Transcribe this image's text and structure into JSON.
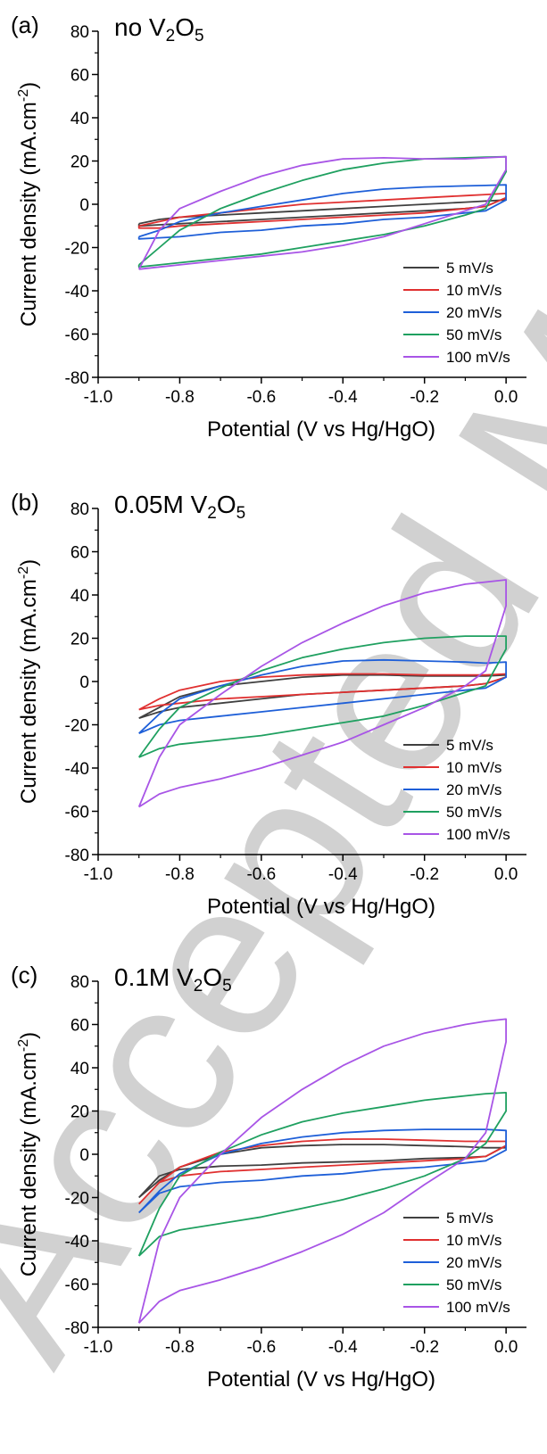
{
  "figure": {
    "watermark_text": "Accepted Manuscript"
  },
  "chart_data": [
    {
      "type": "line",
      "panel": "(a)",
      "title_parts": [
        "no V",
        "2",
        "O",
        "5"
      ],
      "xlabel": "Potential (V vs Hg/HgO)",
      "ylabel": "Current density (mA.cm",
      "ylabel_sup": "-2",
      "ylabel_end": ")",
      "xlim": [
        -1.0,
        0.05
      ],
      "ylim": [
        -80,
        80
      ],
      "xticks": [
        -1.0,
        -0.8,
        -0.6,
        -0.4,
        -0.2,
        0.0
      ],
      "xtick_labels": [
        "-1.0",
        "-0.8",
        "-0.6",
        "-0.4",
        "-0.2",
        "0.0"
      ],
      "yticks": [
        -80,
        -60,
        -40,
        -20,
        0,
        20,
        40,
        60,
        80
      ],
      "ytick_labels": [
        "-80",
        "-60",
        "-40",
        "-20",
        "0",
        "20",
        "40",
        "60",
        "80"
      ],
      "legend_position": "bottom-right",
      "series": [
        {
          "name": "5 mV/s",
          "color": "#404040",
          "x": [
            -0.9,
            -0.85,
            -0.8,
            -0.7,
            -0.6,
            -0.5,
            -0.4,
            -0.3,
            -0.2,
            -0.1,
            -0.05,
            0.0,
            0.0,
            -0.05,
            -0.1,
            -0.2,
            -0.3,
            -0.4,
            -0.5,
            -0.6,
            -0.7,
            -0.8,
            -0.85,
            -0.9,
            -0.9
          ],
          "y": [
            -9,
            -7,
            -6,
            -5,
            -4,
            -3,
            -2,
            -1,
            0,
            1,
            1.5,
            2,
            3,
            -1,
            -2,
            -3,
            -4,
            -5,
            -6,
            -7,
            -8,
            -9,
            -9.5,
            -10,
            -9
          ]
        },
        {
          "name": "10 mV/s",
          "color": "#e03030",
          "x": [
            -0.9,
            -0.85,
            -0.8,
            -0.7,
            -0.6,
            -0.5,
            -0.4,
            -0.3,
            -0.2,
            -0.1,
            -0.05,
            0.0,
            0.0,
            -0.05,
            -0.1,
            -0.2,
            -0.3,
            -0.4,
            -0.5,
            -0.6,
            -0.7,
            -0.8,
            -0.85,
            -0.9,
            -0.9
          ],
          "y": [
            -10,
            -8,
            -6,
            -4,
            -2,
            0,
            1,
            2,
            3,
            4,
            4.5,
            5,
            3,
            -1,
            -2,
            -4,
            -5,
            -6,
            -7,
            -8,
            -9,
            -10,
            -11,
            -11,
            -10
          ]
        },
        {
          "name": "20 mV/s",
          "color": "#1e5fd8",
          "x": [
            -0.9,
            -0.85,
            -0.8,
            -0.7,
            -0.6,
            -0.5,
            -0.4,
            -0.3,
            -0.2,
            -0.1,
            -0.05,
            0.0,
            0.0,
            -0.05,
            -0.1,
            -0.2,
            -0.3,
            -0.4,
            -0.5,
            -0.6,
            -0.7,
            -0.8,
            -0.85,
            -0.9,
            -0.9
          ],
          "y": [
            -15,
            -12,
            -8,
            -4,
            -1,
            2,
            5,
            7,
            8,
            8.5,
            8.7,
            9,
            2,
            -3,
            -4,
            -6,
            -7,
            -9,
            -10,
            -12,
            -13,
            -15,
            -15.5,
            -16,
            -15
          ]
        },
        {
          "name": "50 mV/s",
          "color": "#1fa060",
          "x": [
            -0.9,
            -0.85,
            -0.8,
            -0.7,
            -0.6,
            -0.5,
            -0.4,
            -0.3,
            -0.2,
            -0.1,
            -0.05,
            0.0,
            0.0,
            -0.05,
            -0.1,
            -0.2,
            -0.3,
            -0.4,
            -0.5,
            -0.6,
            -0.7,
            -0.8,
            -0.85,
            -0.9,
            -0.9
          ],
          "y": [
            -28,
            -20,
            -12,
            -2,
            5,
            11,
            16,
            19,
            21,
            21.5,
            21.8,
            22,
            15,
            -2,
            -5,
            -10,
            -14,
            -17,
            -20,
            -23,
            -25,
            -27,
            -28,
            -29,
            -28
          ]
        },
        {
          "name": "100 mV/s",
          "color": "#a855e6",
          "x": [
            -0.9,
            -0.85,
            -0.8,
            -0.7,
            -0.6,
            -0.5,
            -0.4,
            -0.3,
            -0.2,
            -0.1,
            -0.05,
            0.0,
            0.0,
            -0.05,
            -0.1,
            -0.2,
            -0.3,
            -0.4,
            -0.5,
            -0.6,
            -0.7,
            -0.8,
            -0.85,
            -0.9,
            -0.9
          ],
          "y": [
            -30,
            -12,
            -2,
            6,
            13,
            18,
            21,
            21.5,
            21,
            21,
            21.5,
            22,
            16,
            0,
            -3,
            -9,
            -15,
            -19,
            -22,
            -24,
            -26,
            -28,
            -29,
            -30,
            -30
          ]
        }
      ]
    },
    {
      "type": "line",
      "panel": "(b)",
      "title_parts": [
        "0.05M V",
        "2",
        "O",
        "5"
      ],
      "xlabel": "Potential (V vs Hg/HgO)",
      "ylabel": "Current density (mA.cm",
      "ylabel_sup": "-2",
      "ylabel_end": ")",
      "xlim": [
        -1.0,
        0.05
      ],
      "ylim": [
        -80,
        80
      ],
      "xticks": [
        -1.0,
        -0.8,
        -0.6,
        -0.4,
        -0.2,
        0.0
      ],
      "xtick_labels": [
        "-1.0",
        "-0.8",
        "-0.6",
        "-0.4",
        "-0.2",
        "0.0"
      ],
      "yticks": [
        -80,
        -60,
        -40,
        -20,
        0,
        20,
        40,
        60,
        80
      ],
      "ytick_labels": [
        "-80",
        "-60",
        "-40",
        "-20",
        "0",
        "20",
        "40",
        "60",
        "80"
      ],
      "legend_position": "bottom-right",
      "series": [
        {
          "name": "5 mV/s",
          "color": "#404040",
          "x": [
            -0.9,
            -0.85,
            -0.8,
            -0.7,
            -0.6,
            -0.5,
            -0.4,
            -0.3,
            -0.2,
            -0.1,
            -0.05,
            0.0,
            0.0,
            -0.05,
            -0.1,
            -0.2,
            -0.3,
            -0.4,
            -0.5,
            -0.6,
            -0.7,
            -0.8,
            -0.85,
            -0.9,
            -0.9
          ],
          "y": [
            -17,
            -12,
            -7,
            -2,
            0,
            2,
            3,
            3,
            2.5,
            2.5,
            2.5,
            3,
            2,
            -1,
            -2,
            -3,
            -4,
            -5,
            -6,
            -8,
            -10,
            -12,
            -14,
            -17,
            -17
          ]
        },
        {
          "name": "10 mV/s",
          "color": "#e03030",
          "x": [
            -0.9,
            -0.85,
            -0.8,
            -0.7,
            -0.6,
            -0.5,
            -0.4,
            -0.3,
            -0.2,
            -0.1,
            -0.05,
            0.0,
            0.0,
            -0.05,
            -0.1,
            -0.2,
            -0.3,
            -0.4,
            -0.5,
            -0.6,
            -0.7,
            -0.8,
            -0.85,
            -0.9,
            -0.9
          ],
          "y": [
            -13,
            -8,
            -4,
            0,
            2,
            3,
            3.5,
            3.5,
            3,
            3,
            3,
            3.5,
            2,
            -1,
            -2,
            -3,
            -4,
            -5,
            -6,
            -7,
            -8,
            -10,
            -11,
            -13,
            -13
          ]
        },
        {
          "name": "20 mV/s",
          "color": "#1e5fd8",
          "x": [
            -0.9,
            -0.85,
            -0.8,
            -0.7,
            -0.6,
            -0.5,
            -0.4,
            -0.3,
            -0.2,
            -0.1,
            -0.05,
            0.0,
            0.0,
            -0.05,
            -0.1,
            -0.2,
            -0.3,
            -0.4,
            -0.5,
            -0.6,
            -0.7,
            -0.8,
            -0.85,
            -0.9,
            -0.9
          ],
          "y": [
            -24,
            -15,
            -8,
            -2,
            3,
            7,
            9.5,
            10,
            9.5,
            9,
            8.5,
            9,
            2,
            -3,
            -4,
            -6,
            -8,
            -10,
            -12,
            -14,
            -16,
            -18,
            -20,
            -24,
            -24
          ]
        },
        {
          "name": "50 mV/s",
          "color": "#1fa060",
          "x": [
            -0.9,
            -0.85,
            -0.8,
            -0.7,
            -0.6,
            -0.5,
            -0.4,
            -0.3,
            -0.2,
            -0.1,
            -0.05,
            0.0,
            0.0,
            -0.05,
            -0.1,
            -0.2,
            -0.3,
            -0.4,
            -0.5,
            -0.6,
            -0.7,
            -0.8,
            -0.85,
            -0.9,
            -0.9
          ],
          "y": [
            -35,
            -22,
            -12,
            -3,
            5,
            11,
            15,
            18,
            20,
            21,
            21,
            21,
            15,
            -2,
            -5,
            -11,
            -16,
            -19,
            -22,
            -25,
            -27,
            -29,
            -31,
            -35,
            -35
          ]
        },
        {
          "name": "100 mV/s",
          "color": "#a855e6",
          "x": [
            -0.9,
            -0.85,
            -0.8,
            -0.7,
            -0.6,
            -0.5,
            -0.4,
            -0.3,
            -0.2,
            -0.1,
            -0.05,
            0.0,
            0.0,
            -0.05,
            -0.1,
            -0.2,
            -0.3,
            -0.4,
            -0.5,
            -0.6,
            -0.7,
            -0.8,
            -0.85,
            -0.9,
            -0.9
          ],
          "y": [
            -58,
            -35,
            -20,
            -6,
            7,
            18,
            27,
            35,
            41,
            45,
            46,
            47,
            35,
            5,
            -2,
            -12,
            -20,
            -28,
            -34,
            -40,
            -45,
            -49,
            -52,
            -58,
            -58
          ]
        }
      ]
    },
    {
      "type": "line",
      "panel": "(c)",
      "title_parts": [
        "0.1M V",
        "2",
        "O",
        "5"
      ],
      "xlabel": "Potential (V vs Hg/HgO)",
      "ylabel": "Current density (mA.cm",
      "ylabel_sup": "-2",
      "ylabel_end": ")",
      "xlim": [
        -1.0,
        0.05
      ],
      "ylim": [
        -80,
        80
      ],
      "xticks": [
        -1.0,
        -0.8,
        -0.6,
        -0.4,
        -0.2,
        0.0
      ],
      "xtick_labels": [
        "-1.0",
        "-0.8",
        "-0.6",
        "-0.4",
        "-0.2",
        "0.0"
      ],
      "yticks": [
        -80,
        -60,
        -40,
        -20,
        0,
        20,
        40,
        60,
        80
      ],
      "ytick_labels": [
        "-80",
        "-60",
        "-40",
        "-20",
        "0",
        "20",
        "40",
        "60",
        "80"
      ],
      "legend_position": "bottom-right",
      "series": [
        {
          "name": "5 mV/s",
          "color": "#404040",
          "x": [
            -0.9,
            -0.85,
            -0.8,
            -0.7,
            -0.6,
            -0.5,
            -0.4,
            -0.3,
            -0.2,
            -0.1,
            -0.05,
            0.0,
            0.0,
            -0.05,
            -0.1,
            -0.2,
            -0.3,
            -0.4,
            -0.5,
            -0.6,
            -0.7,
            -0.8,
            -0.85,
            -0.9,
            -0.9
          ],
          "y": [
            -20,
            -12,
            -6,
            0,
            3,
            4,
            4.5,
            4.5,
            4,
            3.5,
            3,
            3,
            4,
            -1,
            -1.5,
            -2,
            -3,
            -3.5,
            -4,
            -5,
            -5.5,
            -7,
            -10,
            -20,
            -20
          ]
        },
        {
          "name": "10 mV/s",
          "color": "#e03030",
          "x": [
            -0.9,
            -0.85,
            -0.8,
            -0.7,
            -0.6,
            -0.5,
            -0.4,
            -0.3,
            -0.2,
            -0.1,
            -0.05,
            0.0,
            0.0,
            -0.05,
            -0.1,
            -0.2,
            -0.3,
            -0.4,
            -0.5,
            -0.6,
            -0.7,
            -0.8,
            -0.85,
            -0.9,
            -0.9
          ],
          "y": [
            -23,
            -13,
            -6,
            1,
            4,
            6,
            7,
            7,
            6.5,
            6,
            6,
            6,
            4,
            -1,
            -2,
            -3,
            -4,
            -5,
            -6,
            -7,
            -8,
            -10,
            -13,
            -23,
            -23
          ]
        },
        {
          "name": "20 mV/s",
          "color": "#1e5fd8",
          "x": [
            -0.9,
            -0.85,
            -0.8,
            -0.7,
            -0.6,
            -0.5,
            -0.4,
            -0.3,
            -0.2,
            -0.1,
            -0.05,
            0.0,
            0.0,
            -0.05,
            -0.1,
            -0.2,
            -0.3,
            -0.4,
            -0.5,
            -0.6,
            -0.7,
            -0.8,
            -0.85,
            -0.9,
            -0.9
          ],
          "y": [
            -27,
            -17,
            -9,
            0,
            5,
            8,
            10,
            11,
            11.5,
            11.5,
            11.5,
            11,
            2,
            -3,
            -4,
            -6,
            -7,
            -9,
            -10,
            -12,
            -13,
            -15,
            -18,
            -27,
            -27
          ]
        },
        {
          "name": "50 mV/s",
          "color": "#1fa060",
          "x": [
            -0.9,
            -0.85,
            -0.8,
            -0.7,
            -0.6,
            -0.5,
            -0.4,
            -0.3,
            -0.2,
            -0.1,
            -0.05,
            0.0,
            0.0,
            -0.05,
            -0.1,
            -0.2,
            -0.3,
            -0.4,
            -0.5,
            -0.6,
            -0.7,
            -0.8,
            -0.85,
            -0.9,
            -0.9
          ],
          "y": [
            -47,
            -25,
            -10,
            1,
            9,
            15,
            19,
            22,
            25,
            27,
            28,
            28.5,
            20,
            5,
            -2,
            -10,
            -16,
            -21,
            -25,
            -29,
            -32,
            -35,
            -38,
            -47,
            -47
          ]
        },
        {
          "name": "100 mV/s",
          "color": "#a855e6",
          "x": [
            -0.9,
            -0.85,
            -0.8,
            -0.7,
            -0.6,
            -0.5,
            -0.4,
            -0.3,
            -0.2,
            -0.1,
            -0.05,
            0.0,
            0.0,
            -0.05,
            -0.1,
            -0.2,
            -0.3,
            -0.4,
            -0.5,
            -0.6,
            -0.7,
            -0.8,
            -0.85,
            -0.9,
            -0.9
          ],
          "y": [
            -78,
            -40,
            -20,
            0,
            17,
            30,
            41,
            50,
            56,
            60,
            61.5,
            62.5,
            52,
            10,
            -2,
            -14,
            -27,
            -37,
            -45,
            -52,
            -58,
            -63,
            -68,
            -78,
            -78
          ]
        }
      ]
    }
  ]
}
